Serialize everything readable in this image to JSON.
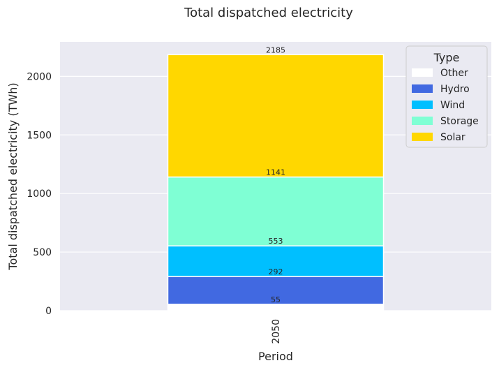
{
  "chart_data": {
    "type": "bar",
    "stacked": true,
    "title": "Total dispatched electricity",
    "xlabel": "Period",
    "ylabel": "Total dispatched electricity (TWh)",
    "categories": [
      "2050"
    ],
    "ylim": [
      0,
      2294
    ],
    "yticks": [
      0,
      500,
      1000,
      1500,
      2000
    ],
    "grid": true,
    "legend": {
      "title": "Type",
      "placement": "top-right"
    },
    "series": [
      {
        "name": "Other",
        "values": [
          55
        ],
        "color": "#ffffff"
      },
      {
        "name": "Hydro",
        "values": [
          237
        ],
        "color": "#4169e1"
      },
      {
        "name": "Wind",
        "values": [
          261
        ],
        "color": "#00bfff"
      },
      {
        "name": "Storage",
        "values": [
          588
        ],
        "color": "#7fffd4"
      },
      {
        "name": "Solar",
        "values": [
          1044
        ],
        "color": "#ffd700"
      }
    ],
    "data_labels": [
      55,
      292,
      553,
      1141,
      2185
    ]
  },
  "colors": {
    "plot_background": "#eaeaf2",
    "grid": "#ffffff"
  }
}
